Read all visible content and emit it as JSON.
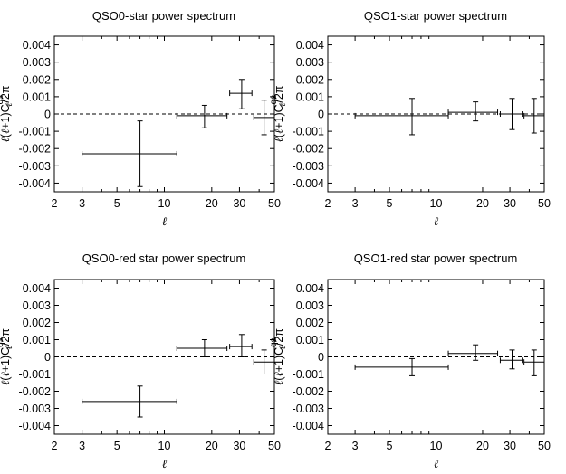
{
  "chart_data": [
    {
      "type": "scatter",
      "title": "QSO0-star power spectrum",
      "xlabel": "ℓ",
      "ylabel": "ℓ(ℓ+1)C_ℓ^qs/2π",
      "xscale": "log",
      "xlim": [
        2,
        50
      ],
      "ylim": [
        -0.0045,
        0.0045
      ],
      "xticks": [
        "2",
        "3",
        "5",
        "10",
        "20",
        "30",
        "50"
      ],
      "yticks": [
        "0.004",
        "0.003",
        "0.002",
        "0.001",
        "0",
        "-0.001",
        "-0.002",
        "-0.003",
        "-0.004"
      ],
      "zero_line": true,
      "points": [
        {
          "x": 7,
          "xlo": 3,
          "xhi": 12,
          "y": -0.0023,
          "ylo": -0.0042,
          "yhi": -0.0004
        },
        {
          "x": 18,
          "xlo": 12,
          "xhi": 25,
          "y": -0.0001,
          "ylo": -0.0008,
          "yhi": 0.0005
        },
        {
          "x": 31,
          "xlo": 26,
          "xhi": 36,
          "y": 0.0012,
          "ylo": 0.0003,
          "yhi": 0.002
        },
        {
          "x": 43,
          "xlo": 37,
          "xhi": 50,
          "y": -0.0002,
          "ylo": -0.0012,
          "yhi": 0.0008
        }
      ]
    },
    {
      "type": "scatter",
      "title": "QSO1-star power spectrum",
      "xlabel": "ℓ",
      "ylabel": "ℓ(ℓ+1)C_ℓ^qs/2π",
      "xscale": "log",
      "xlim": [
        2,
        50
      ],
      "ylim": [
        -0.0045,
        0.0045
      ],
      "xticks": [
        "2",
        "3",
        "5",
        "10",
        "20",
        "30",
        "50"
      ],
      "yticks": [
        "0.004",
        "0.003",
        "0.002",
        "0.001",
        "0",
        "-0.001",
        "-0.002",
        "-0.003",
        "-0.004"
      ],
      "zero_line": true,
      "points": [
        {
          "x": 7,
          "xlo": 3,
          "xhi": 12,
          "y": -0.0001,
          "ylo": -0.0012,
          "yhi": 0.0009
        },
        {
          "x": 18,
          "xlo": 12,
          "xhi": 25,
          "y": 0.0001,
          "ylo": -0.0004,
          "yhi": 0.0007
        },
        {
          "x": 31,
          "xlo": 26,
          "xhi": 36,
          "y": 0.0,
          "ylo": -0.0009,
          "yhi": 0.0009
        },
        {
          "x": 43,
          "xlo": 37,
          "xhi": 50,
          "y": -0.0001,
          "ylo": -0.0011,
          "yhi": 0.0009
        }
      ]
    },
    {
      "type": "scatter",
      "title": "QSO0-red star power spectrum",
      "xlabel": "ℓ",
      "ylabel": "ℓ(ℓ+1)C_ℓ^qs/2π",
      "xscale": "log",
      "xlim": [
        2,
        50
      ],
      "ylim": [
        -0.0045,
        0.0045
      ],
      "xticks": [
        "2",
        "3",
        "5",
        "10",
        "20",
        "30",
        "50"
      ],
      "yticks": [
        "0.004",
        "0.003",
        "0.002",
        "0.001",
        "0",
        "-0.001",
        "-0.002",
        "-0.003",
        "-0.004"
      ],
      "zero_line": true,
      "points": [
        {
          "x": 7,
          "xlo": 3,
          "xhi": 12,
          "y": -0.0026,
          "ylo": -0.0035,
          "yhi": -0.0017
        },
        {
          "x": 18,
          "xlo": 12,
          "xhi": 25,
          "y": 0.0005,
          "ylo": 0.0,
          "yhi": 0.001
        },
        {
          "x": 31,
          "xlo": 26,
          "xhi": 36,
          "y": 0.0006,
          "ylo": 0.0,
          "yhi": 0.0013
        },
        {
          "x": 43,
          "xlo": 37,
          "xhi": 50,
          "y": -0.0003,
          "ylo": -0.001,
          "yhi": 0.0004
        }
      ]
    },
    {
      "type": "scatter",
      "title": "QSO1-red star power spectrum",
      "xlabel": "ℓ",
      "ylabel": "ℓ(ℓ+1)C_ℓ^qs/2π",
      "xscale": "log",
      "xlim": [
        2,
        50
      ],
      "ylim": [
        -0.0045,
        0.0045
      ],
      "xticks": [
        "2",
        "3",
        "5",
        "10",
        "20",
        "30",
        "50"
      ],
      "yticks": [
        "0.004",
        "0.003",
        "0.002",
        "0.001",
        "0",
        "-0.001",
        "-0.002",
        "-0.003",
        "-0.004"
      ],
      "zero_line": true,
      "points": [
        {
          "x": 7,
          "xlo": 3,
          "xhi": 12,
          "y": -0.0006,
          "ylo": -0.0011,
          "yhi": -0.0001
        },
        {
          "x": 18,
          "xlo": 12,
          "xhi": 25,
          "y": 0.0002,
          "ylo": -0.0002,
          "yhi": 0.0007
        },
        {
          "x": 31,
          "xlo": 26,
          "xhi": 36,
          "y": -0.0002,
          "ylo": -0.0007,
          "yhi": 0.0004
        },
        {
          "x": 43,
          "xlo": 37,
          "xhi": 50,
          "y": -0.0003,
          "ylo": -0.0011,
          "yhi": 0.0004
        }
      ]
    }
  ]
}
